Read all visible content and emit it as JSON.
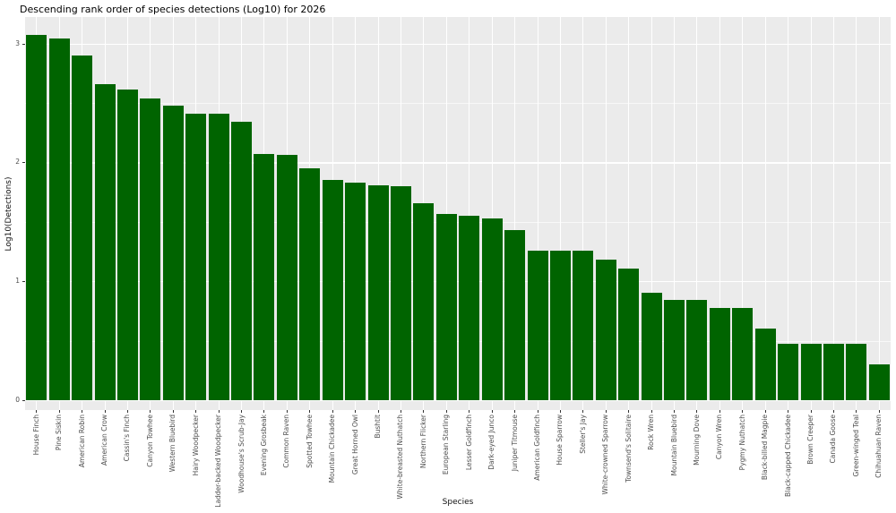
{
  "chart_data": {
    "type": "bar",
    "title": "Descending rank order of species detections (Log10) for 2026",
    "xlabel": "Species",
    "ylabel": "Log10(Detections)",
    "legend_position": "none",
    "grid": "on",
    "panel_bg": "#EBEBEB",
    "gridline_color": "#FFFFFF",
    "bar_color": "#006400",
    "axis_text_color": "#4D4D4D",
    "yticks": [
      0,
      1,
      2,
      3
    ],
    "minor_yticks": [
      0.5,
      1.5,
      2.5
    ],
    "ylim": [
      -0.083,
      3.223
    ],
    "categories": [
      "House Finch",
      "Pine Siskin",
      "American Robin",
      "American Crow",
      "Cassin's Finch",
      "Canyon Towhee",
      "Western Bluebird",
      "Hairy Woodpecker",
      "Ladder-backed Woodpecker",
      "Woodhouse's Scrub-Jay",
      "Evening Grosbeak",
      "Common Raven",
      "Spotted Towhee",
      "Mountain Chickadee",
      "Great Horned Owl",
      "Bushtit",
      "White-breasted Nuthatch",
      "Northern Flicker",
      "European Starling",
      "Lesser Goldfinch",
      "Dark-eyed Junco",
      "Juniper Titmouse",
      "American Goldfinch",
      "House Sparrow",
      "Steller's Jay",
      "White-crowned Sparrow",
      "Townsend's Solitaire",
      "Rock Wren",
      "Mountain Bluebird",
      "Mourning Dove",
      "Canyon Wren",
      "Pygmy Nuthatch",
      "Black-billed Magpie",
      "Black-capped Chickadee",
      "Brown Creeper",
      "Canada Goose",
      "Green-winged Teal",
      "Chihuahuan Raven"
    ],
    "values": [
      3.07,
      3.04,
      2.9,
      2.66,
      2.61,
      2.54,
      2.48,
      2.41,
      2.41,
      2.34,
      2.07,
      2.06,
      1.95,
      1.85,
      1.83,
      1.81,
      1.8,
      1.66,
      1.57,
      1.55,
      1.53,
      1.43,
      1.26,
      1.26,
      1.26,
      1.18,
      1.11,
      0.903,
      0.845,
      0.845,
      0.778,
      0.778,
      0.602,
      0.477,
      0.477,
      0.477,
      0.477,
      0.301
    ]
  }
}
